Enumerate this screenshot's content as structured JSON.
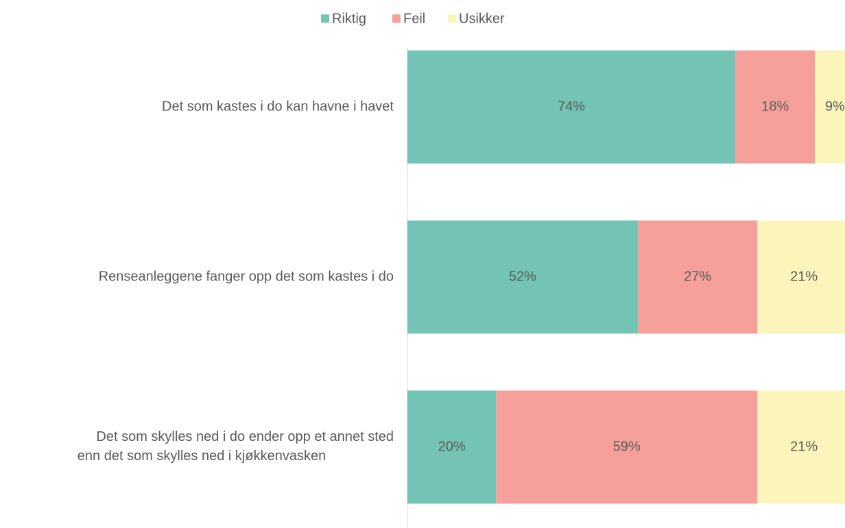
{
  "chart_data": {
    "type": "stacked-bar-horizontal",
    "categories": [
      "Det som kastes i do kan havne i havet",
      "Renseanleggene fanger opp det som kastes i do",
      "Det som skylles ned i do ender opp et annet sted\nenn det som skylles ned i kjøkkenvasken"
    ],
    "series": [
      {
        "name": "Riktig",
        "color": "#73c4b4",
        "values": [
          74,
          52,
          20
        ],
        "value_labels": [
          "74%",
          "52%",
          "20%"
        ]
      },
      {
        "name": "Feil",
        "color": "#f6a09b",
        "values": [
          18,
          27,
          59
        ],
        "value_labels": [
          "18%",
          "27%",
          "59%"
        ]
      },
      {
        "name": "Usikker",
        "color": "#fbf5bb",
        "values": [
          9,
          21,
          21
        ],
        "value_labels": [
          "9%",
          "21%",
          "21%"
        ]
      }
    ],
    "xlim": [
      0,
      100
    ],
    "legend": "top"
  }
}
